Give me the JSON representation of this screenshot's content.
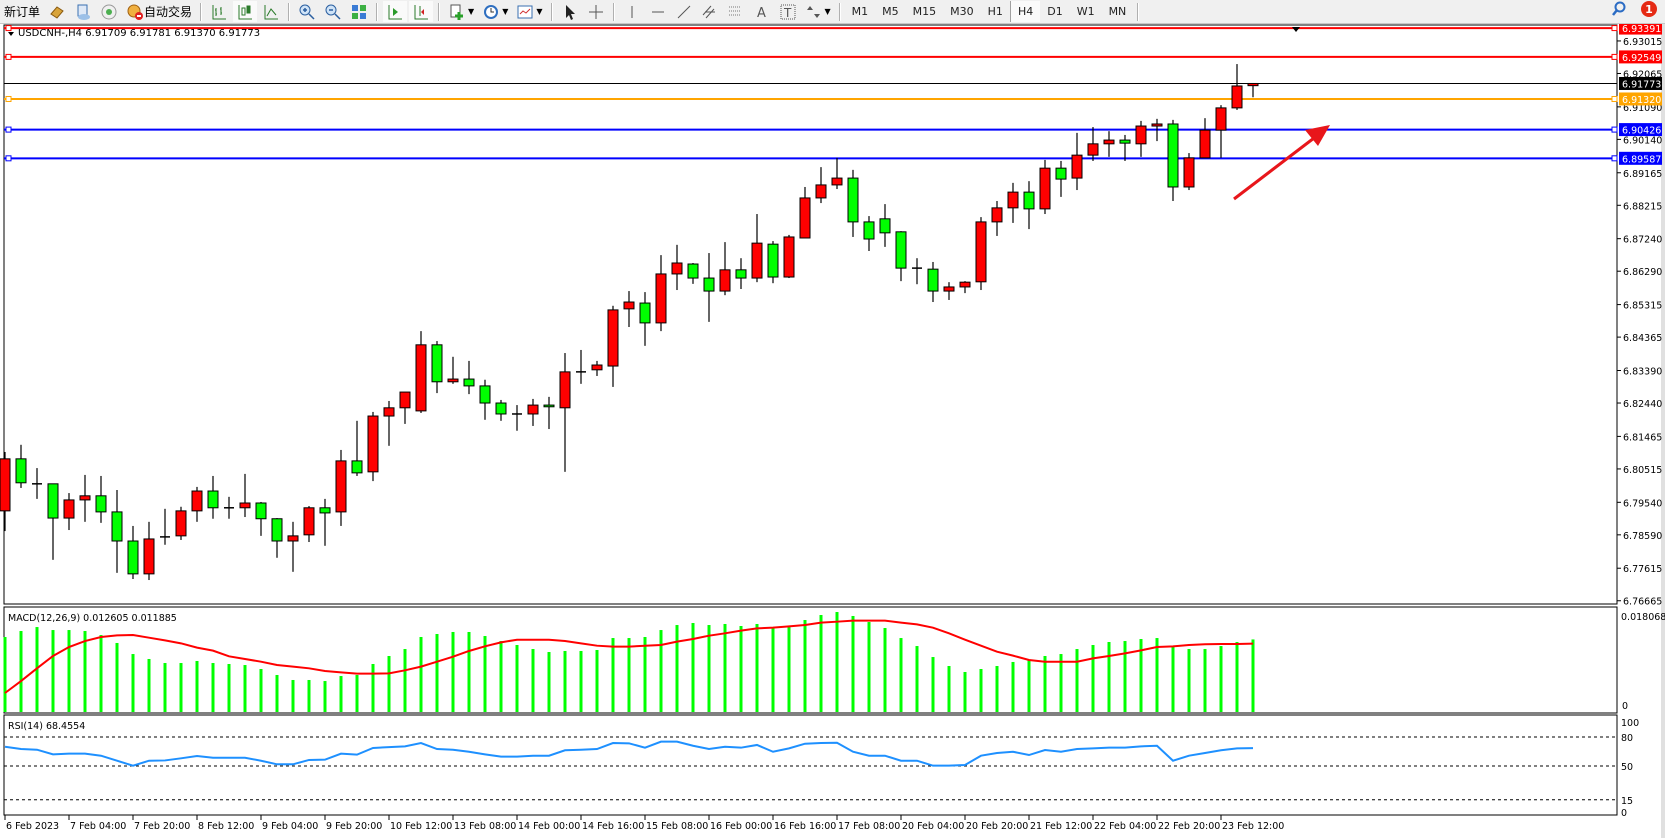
{
  "toolbar": {
    "new_order_label": "新订单",
    "auto_trading_label": "自动交易",
    "timeframes": [
      "M1",
      "M5",
      "M15",
      "M30",
      "H1",
      "H4",
      "D1",
      "W1",
      "MN"
    ],
    "active_timeframe": "H4",
    "notification_count": "1"
  },
  "chart_header": {
    "symbol_info": "USDCNH-,H4  6.91709 6.91781 6.91370 6.91773"
  },
  "colors": {
    "bull_candle": "#ff0000",
    "bear_candle": "#00ff00",
    "macd_histogram": "#00ff00",
    "macd_signal": "#ff0000",
    "rsi_line": "#1e90ff",
    "resistance_line": "#ff0000",
    "pivot_line": "#ffa500",
    "support_line": "#0000ff",
    "current_price_line": "#000000",
    "arrow": "#e8161b"
  },
  "chart_data": [
    {
      "type": "candlestick",
      "symbol": "USDCNH-",
      "timeframe": "H4",
      "ylim": [
        6.7657,
        6.9351
      ],
      "price_ticks": [
        "6.93015",
        "6.92065",
        "6.91090",
        "6.90140",
        "6.89165",
        "6.88215",
        "6.87240",
        "6.86290",
        "6.85315",
        "6.84365",
        "6.83390",
        "6.82440",
        "6.81465",
        "6.80515",
        "6.79540",
        "6.78590",
        "6.77615",
        "6.76665"
      ],
      "time_labels": [
        "6 Feb 2023",
        "7 Feb 04:00",
        "7 Feb 20:00",
        "8 Feb 12:00",
        "9 Feb 04:00",
        "9 Feb 20:00",
        "10 Feb 12:00",
        "13 Feb 08:00",
        "14 Feb 00:00",
        "14 Feb 16:00",
        "15 Feb 08:00",
        "16 Feb 00:00",
        "16 Feb 16:00",
        "17 Feb 08:00",
        "20 Feb 04:00",
        "20 Feb 20:00",
        "21 Feb 12:00",
        "22 Feb 04:00",
        "22 Feb 20:00",
        "23 Feb 12:00"
      ],
      "ohlc": [
        [
          6.7929,
          6.8101,
          6.787,
          6.8081
        ],
        [
          6.8081,
          6.8122,
          6.7996,
          6.8011
        ],
        [
          6.8008,
          6.8054,
          6.7964,
          6.8008
        ],
        [
          6.8008,
          6.8008,
          6.7786,
          6.7908
        ],
        [
          6.7908,
          6.7981,
          6.7873,
          6.7961
        ],
        [
          6.7961,
          6.8034,
          6.7897,
          6.7973
        ],
        [
          6.7973,
          6.8031,
          6.7894,
          6.7926
        ],
        [
          6.7926,
          6.799,
          6.7748,
          6.7841
        ],
        [
          6.7841,
          6.7885,
          6.773,
          6.7745
        ],
        [
          6.7745,
          6.7897,
          6.7727,
          6.7847
        ],
        [
          6.7853,
          6.7935,
          6.783,
          6.7853
        ],
        [
          6.7856,
          6.7941,
          6.7844,
          6.7929
        ],
        [
          6.7929,
          6.7999,
          6.7897,
          6.7987
        ],
        [
          6.7987,
          6.8031,
          6.7906,
          6.7938
        ],
        [
          6.7938,
          6.797,
          6.7906,
          6.7938
        ],
        [
          6.7938,
          6.8037,
          6.7911,
          6.7952
        ],
        [
          6.7952,
          6.7955,
          6.7856,
          6.7906
        ],
        [
          6.7906,
          6.7908,
          6.7792,
          6.7841
        ],
        [
          6.7841,
          6.7897,
          6.7751,
          6.7856
        ],
        [
          6.7859,
          6.7943,
          6.7838,
          6.7938
        ],
        [
          6.7938,
          6.7964,
          6.7827,
          6.7923
        ],
        [
          6.7926,
          6.8107,
          6.7885,
          6.8075
        ],
        [
          6.8075,
          6.8192,
          6.8031,
          6.804
        ],
        [
          6.8043,
          6.8218,
          6.8016,
          6.8206
        ],
        [
          6.8206,
          6.825,
          6.8119,
          6.823
        ],
        [
          6.823,
          6.8276,
          6.8183,
          6.8276
        ],
        [
          6.8221,
          6.8454,
          6.8215,
          6.8414
        ],
        [
          6.8414,
          6.8425,
          6.8273,
          6.8306
        ],
        [
          6.8306,
          6.8379,
          6.83,
          6.8314
        ],
        [
          6.8314,
          6.8367,
          6.827,
          6.8294
        ],
        [
          6.8294,
          6.8312,
          6.8195,
          6.8244
        ],
        [
          6.8244,
          6.8253,
          6.8192,
          6.8212
        ],
        [
          6.8212,
          6.8238,
          6.8163,
          6.8212
        ],
        [
          6.8212,
          6.8256,
          6.8177,
          6.8238
        ],
        [
          6.8238,
          6.8262,
          6.8168,
          6.8233
        ],
        [
          6.823,
          6.839,
          6.8043,
          6.8335
        ],
        [
          6.8335,
          6.8399,
          6.83,
          6.8335
        ],
        [
          6.8341,
          6.8367,
          6.8323,
          6.8355
        ],
        [
          6.8352,
          6.8528,
          6.8291,
          6.8516
        ],
        [
          6.8519,
          6.8571,
          6.8466,
          6.8539
        ],
        [
          6.8536,
          6.8568,
          6.8411,
          6.8478
        ],
        [
          6.8478,
          6.8676,
          6.8454,
          6.8621
        ],
        [
          6.8621,
          6.8706,
          6.8574,
          6.8653
        ],
        [
          6.865,
          6.8653,
          6.8592,
          6.8609
        ],
        [
          6.8609,
          6.8682,
          6.8481,
          6.8571
        ],
        [
          6.8571,
          6.8714,
          6.8559,
          6.8633
        ],
        [
          6.8633,
          6.8667,
          6.8577,
          6.8609
        ],
        [
          6.8609,
          6.8796,
          6.8597,
          6.8711
        ],
        [
          6.8708,
          6.8717,
          6.8594,
          6.8612
        ],
        [
          6.8612,
          6.8735,
          6.8609,
          6.8729
        ],
        [
          6.8726,
          6.8875,
          6.8726,
          6.8843
        ],
        [
          6.8843,
          6.8933,
          6.8828,
          6.8881
        ],
        [
          6.8881,
          6.896,
          6.8869,
          6.8901
        ],
        [
          6.8901,
          6.8925,
          6.8729,
          6.8773
        ],
        [
          6.8773,
          6.879,
          6.8688,
          6.8723
        ],
        [
          6.8782,
          6.8825,
          6.87,
          6.8741
        ],
        [
          6.8744,
          6.8746,
          6.86,
          6.8638
        ],
        [
          6.8638,
          6.8667,
          6.8591,
          6.8638
        ],
        [
          6.8635,
          6.8656,
          6.8539,
          6.8571
        ],
        [
          6.8571,
          6.8597,
          6.8545,
          6.8583
        ],
        [
          6.8583,
          6.86,
          6.8565,
          6.8597
        ],
        [
          6.8598,
          6.8787,
          6.8574,
          6.8773
        ],
        [
          6.8773,
          6.8834,
          6.8732,
          6.8814
        ],
        [
          6.8814,
          6.8887,
          6.877,
          6.886
        ],
        [
          6.886,
          6.8892,
          6.8752,
          6.8811
        ],
        [
          6.8811,
          6.8954,
          6.8796,
          6.893
        ],
        [
          6.893,
          6.8951,
          6.8846,
          6.8898
        ],
        [
          6.8901,
          6.9033,
          6.8866,
          6.8968
        ],
        [
          6.8968,
          6.905,
          6.8951,
          6.9001
        ],
        [
          6.9001,
          6.9038,
          6.8963,
          6.9012
        ],
        [
          6.9012,
          6.9027,
          6.8951,
          6.9003
        ],
        [
          6.9001,
          6.9068,
          6.8963,
          6.9053
        ],
        [
          6.9053,
          6.9074,
          6.9009,
          6.9059
        ],
        [
          6.9059,
          6.9071,
          6.8834,
          6.8875
        ],
        [
          6.8875,
          6.8974,
          6.8866,
          6.896
        ],
        [
          6.896,
          6.9076,
          6.896,
          6.9041
        ],
        [
          6.9041,
          6.9114,
          6.896,
          6.9106
        ],
        [
          6.9106,
          6.9234,
          6.91,
          6.917
        ],
        [
          6.91709,
          6.91781,
          6.9137,
          6.91773
        ]
      ],
      "horizontal_lines": [
        {
          "price": 6.93391,
          "label": "6.93391",
          "color": "#ff0000"
        },
        {
          "price": 6.92549,
          "label": "6.92549",
          "color": "#ff0000"
        },
        {
          "price": 6.91773,
          "label": "6.91773",
          "color": "#000000",
          "current": true
        },
        {
          "price": 6.9132,
          "label": "6.91320",
          "color": "#ffa500"
        },
        {
          "price": 6.90426,
          "label": "6.90426",
          "color": "#0000ff"
        },
        {
          "price": 6.89587,
          "label": "6.89587",
          "color": "#0000ff"
        }
      ]
    },
    {
      "type": "bar",
      "title": "MACD(12,26,9) 0.012605 0.011885",
      "ylim": [
        0,
        0.018068
      ],
      "tick_labels": [
        "0.018068",
        "0"
      ],
      "histogram": [
        0.01303,
        0.01407,
        0.01476,
        0.01424,
        0.01424,
        0.01407,
        0.01337,
        0.01199,
        0.01007,
        0.00921,
        0.00851,
        0.00851,
        0.00886,
        0.00851,
        0.00834,
        0.00816,
        0.00747,
        0.00643,
        0.00556,
        0.00556,
        0.00538,
        0.00625,
        0.00643,
        0.00834,
        0.00973,
        0.01094,
        0.01303,
        0.01355,
        0.0139,
        0.0139,
        0.0132,
        0.01233,
        0.01164,
        0.01094,
        0.01042,
        0.0106,
        0.0106,
        0.01077,
        0.01285,
        0.01285,
        0.01303,
        0.01424,
        0.01511,
        0.01546,
        0.01511,
        0.01529,
        0.01494,
        0.01529,
        0.01459,
        0.01476,
        0.01598,
        0.01685,
        0.01737,
        0.01668,
        0.01563,
        0.01459,
        0.01285,
        0.01146,
        0.00955,
        0.00799,
        0.00695,
        0.00747,
        0.00799,
        0.00869,
        0.00903,
        0.00973,
        0.01007,
        0.01094,
        0.01164,
        0.01216,
        0.01233,
        0.01268,
        0.01285,
        0.01129,
        0.01094,
        0.01094,
        0.01146,
        0.01216,
        0.012605
      ],
      "signal": [
        0.0033,
        0.00538,
        0.00759,
        0.00973,
        0.01129,
        0.01233,
        0.01303,
        0.01332,
        0.01337,
        0.01291,
        0.01245,
        0.01193,
        0.01118,
        0.01066,
        0.00967,
        0.00921,
        0.00874,
        0.00816,
        0.00788,
        0.00759,
        0.00712,
        0.00689,
        0.00666,
        0.00666,
        0.00672,
        0.00724,
        0.00788,
        0.00874,
        0.00961,
        0.0106,
        0.01141,
        0.0121,
        0.01256,
        0.01256,
        0.01256,
        0.01233,
        0.01193,
        0.01152,
        0.01135,
        0.01135,
        0.01152,
        0.01164,
        0.01222,
        0.01268,
        0.01326,
        0.01367,
        0.01413,
        0.01453,
        0.01465,
        0.01488,
        0.01511,
        0.01552,
        0.01569,
        0.01587,
        0.01587,
        0.01587,
        0.01552,
        0.01523,
        0.01465,
        0.01367,
        0.01256,
        0.01152,
        0.01048,
        0.00979,
        0.00903,
        0.00874,
        0.00874,
        0.00874,
        0.00932,
        0.00973,
        0.01019,
        0.01071,
        0.01129,
        0.01141,
        0.01164,
        0.01176,
        0.01181,
        0.01181,
        0.011885
      ]
    },
    {
      "type": "line",
      "title": "RSI(14) 68.4554",
      "ylim": [
        0,
        100
      ],
      "levels": [
        80,
        50,
        15
      ],
      "tick_labels": [
        "100",
        "80",
        "50",
        "15",
        "0"
      ],
      "values": [
        69.9,
        67.5,
        66.8,
        62.0,
        62.7,
        62.7,
        60.6,
        55.4,
        50.3,
        55.4,
        55.7,
        57.9,
        60.3,
        58.5,
        58.5,
        58.5,
        55.4,
        51.7,
        51.7,
        56.2,
        56.5,
        62.7,
        61.7,
        68.6,
        69.5,
        70.3,
        73.7,
        67.5,
        66.8,
        64.7,
        62.0,
        59.6,
        59.6,
        60.6,
        60.6,
        66.2,
        66.8,
        67.5,
        73.7,
        73.4,
        68.9,
        75.1,
        75.1,
        70.9,
        67.5,
        69.9,
        68.9,
        71.7,
        64.7,
        68.2,
        73.0,
        73.7,
        74.0,
        64.7,
        60.6,
        60.6,
        55.4,
        55.4,
        50.3,
        50.3,
        51.0,
        60.6,
        63.4,
        64.7,
        61.3,
        66.5,
        64.7,
        67.5,
        68.2,
        68.9,
        68.9,
        70.3,
        70.9,
        55.4,
        60.6,
        63.4,
        66.2,
        68.2,
        68.4554
      ]
    }
  ]
}
